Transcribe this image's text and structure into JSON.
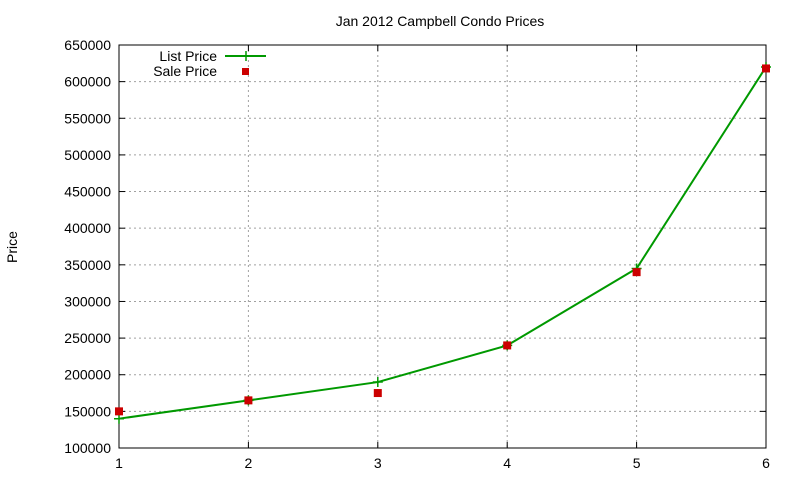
{
  "chart_data": {
    "type": "line",
    "title": "Jan 2012 Campbell Condo Prices",
    "xlabel": "",
    "ylabel": "Price",
    "xlim": [
      1,
      6
    ],
    "ylim": [
      100000,
      650000
    ],
    "x_ticks": [
      1,
      2,
      3,
      4,
      5,
      6
    ],
    "y_ticks": [
      100000,
      150000,
      200000,
      250000,
      300000,
      350000,
      400000,
      450000,
      500000,
      550000,
      600000,
      650000
    ],
    "grid": true,
    "legend_position": "top-left",
    "series": [
      {
        "name": "List Price",
        "style": "line with plus markers",
        "color": "#009900",
        "x": [
          1,
          2,
          3,
          4,
          5,
          6
        ],
        "values": [
          140000,
          165000,
          190000,
          240000,
          345000,
          620000
        ]
      },
      {
        "name": "Sale Price",
        "style": "square markers",
        "color": "#cc0000",
        "x": [
          1,
          2,
          3,
          4,
          5,
          6
        ],
        "values": [
          150000,
          165000,
          175000,
          240000,
          340000,
          618000
        ]
      }
    ]
  }
}
